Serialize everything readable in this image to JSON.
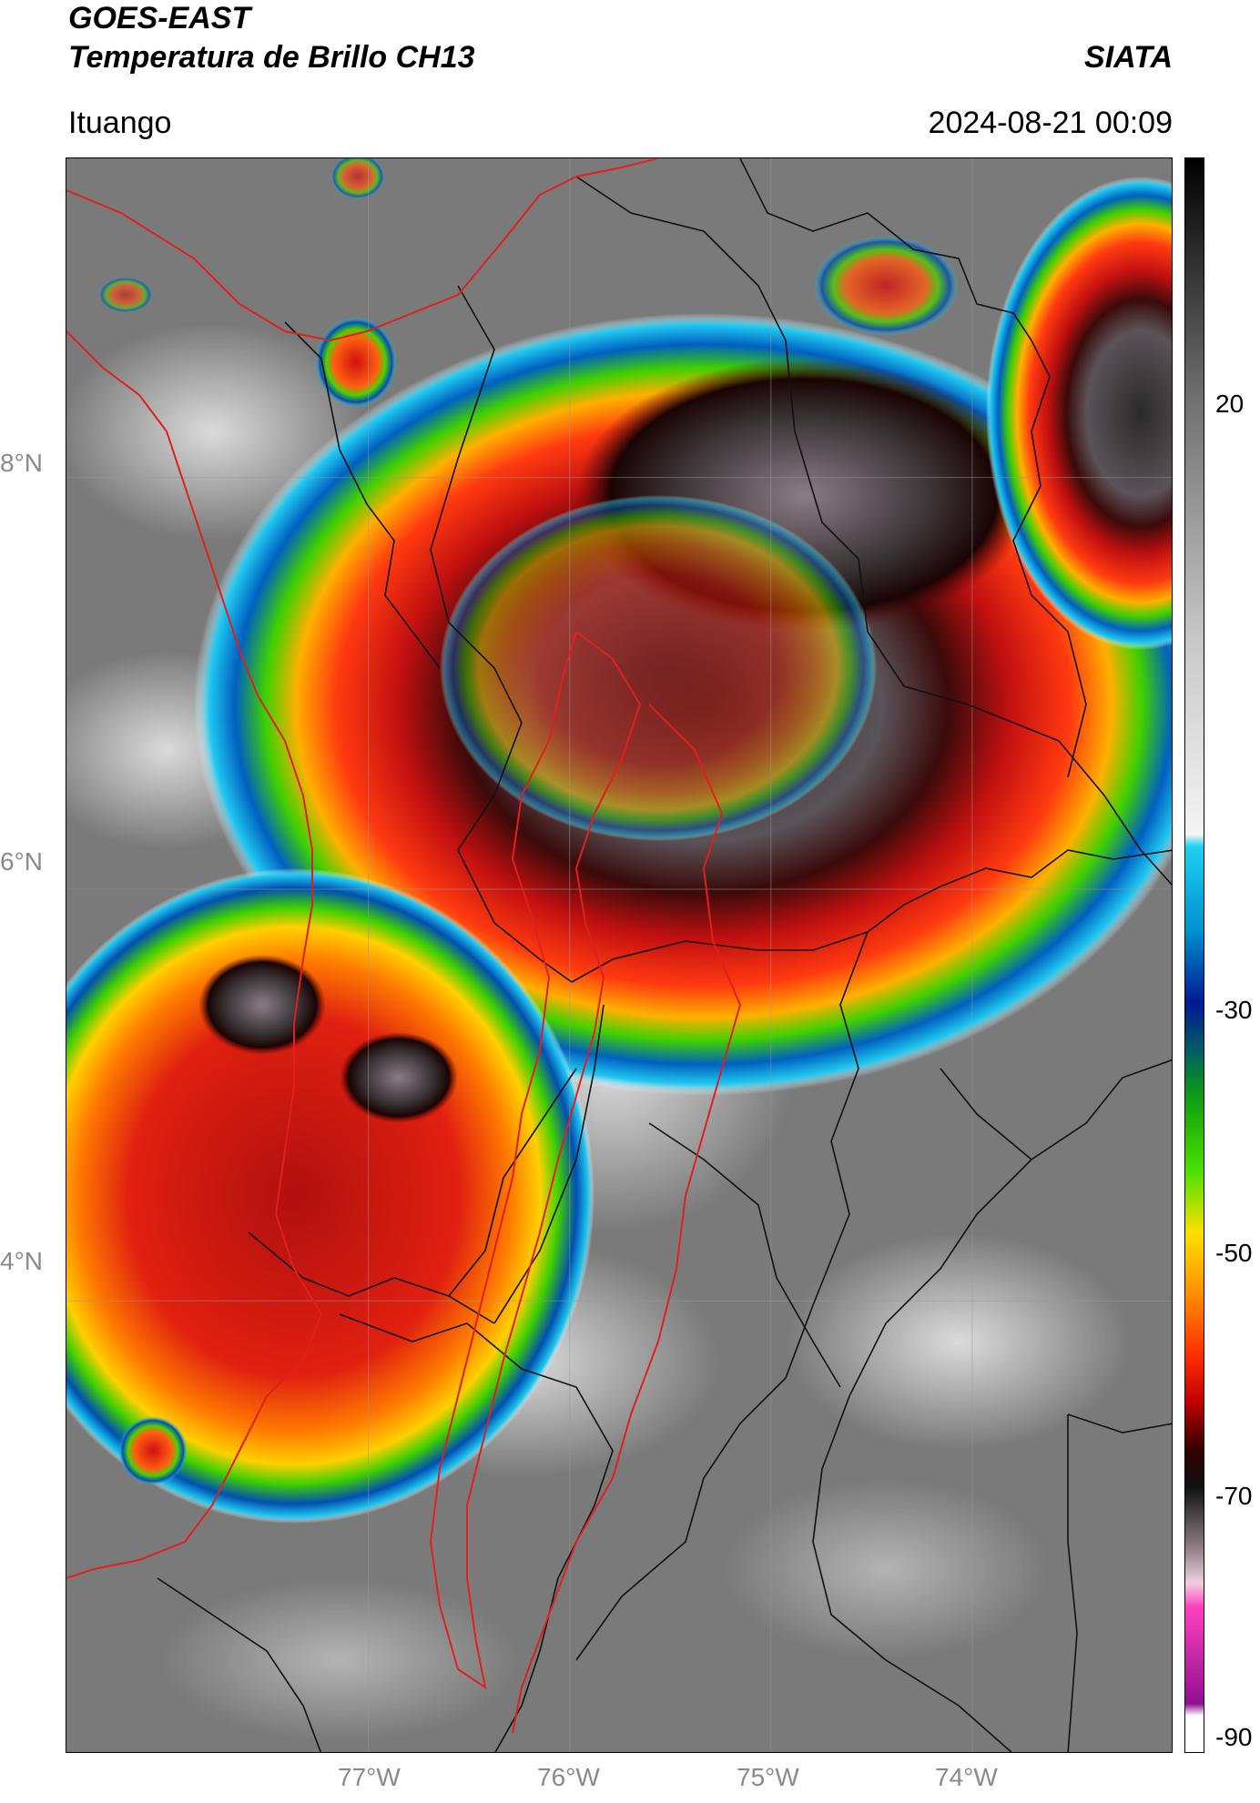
{
  "header": {
    "title_line1": "GOES-EAST",
    "title_line2": "Temperatura de Brillo CH13",
    "agency": "SIATA",
    "location": "Ituango",
    "datetime": "2024-08-21 00:09"
  },
  "map": {
    "lat_labels": [
      "8°N",
      "6°N",
      "4°N"
    ],
    "lon_labels": [
      "77°W",
      "76°W",
      "75°W",
      "74°W"
    ],
    "lat_values": [
      8,
      6,
      4
    ],
    "lon_values": [
      -77,
      -76,
      -75,
      -74
    ],
    "extent": {
      "lon_min": -78.5,
      "lon_max": -73.0,
      "lat_min": 1.8,
      "lat_max": 9.55
    },
    "colors": {
      "political_border": "#e0201e",
      "admin_border": "#111111",
      "grid": "#9a9a9a"
    }
  },
  "colorbar": {
    "labels": [
      "20",
      "-30",
      "-50",
      "-70",
      "-90"
    ],
    "ticks": [
      20,
      -30,
      -50,
      -70,
      -90
    ],
    "range": [
      -92,
      40
    ],
    "unit_hint": "°C"
  }
}
